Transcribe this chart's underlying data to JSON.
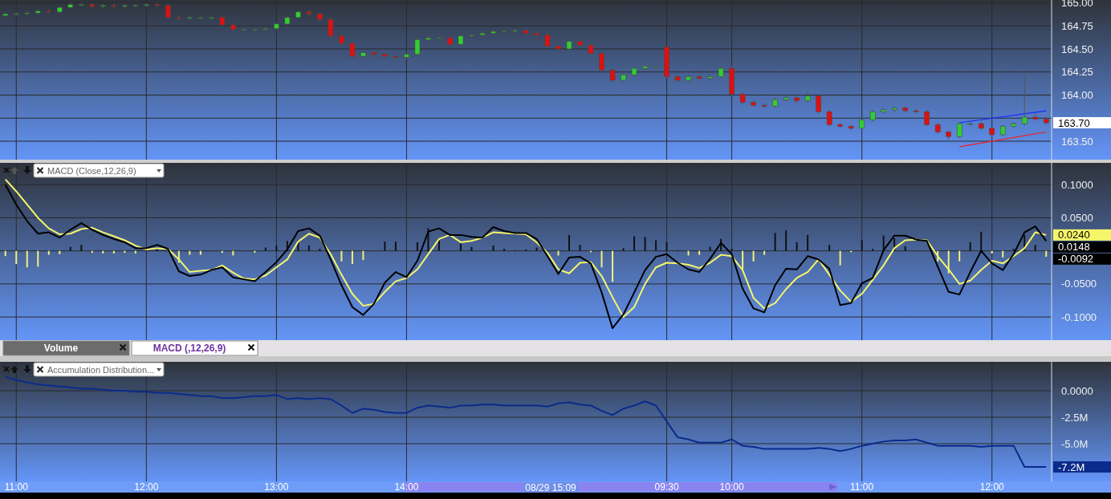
{
  "chart_data": [
    {
      "type": "candlestick",
      "ohlc": [
        [
          164.86,
          164.9,
          164.84,
          164.88
        ],
        [
          164.88,
          164.9,
          164.86,
          164.88
        ],
        [
          164.88,
          164.91,
          164.86,
          164.89
        ],
        [
          164.89,
          164.93,
          164.87,
          164.91
        ],
        [
          164.91,
          164.93,
          164.88,
          164.9
        ],
        [
          164.9,
          164.97,
          164.88,
          164.95
        ],
        [
          164.95,
          165.0,
          164.93,
          164.98
        ],
        [
          164.98,
          165.0,
          164.96,
          164.98
        ],
        [
          164.98,
          165.0,
          164.94,
          164.96
        ],
        [
          164.96,
          164.99,
          164.94,
          164.97
        ],
        [
          164.97,
          164.99,
          164.94,
          164.96
        ],
        [
          164.96,
          164.99,
          164.94,
          164.97
        ],
        [
          164.97,
          164.99,
          164.95,
          164.97
        ],
        [
          164.97,
          165.0,
          164.95,
          164.98
        ],
        [
          164.98,
          165.0,
          164.95,
          164.97
        ],
        [
          164.97,
          164.99,
          164.82,
          164.84
        ],
        [
          164.84,
          164.86,
          164.81,
          164.83
        ],
        [
          164.83,
          164.86,
          164.81,
          164.84
        ],
        [
          164.84,
          164.86,
          164.82,
          164.84
        ],
        [
          164.84,
          164.86,
          164.82,
          164.84
        ],
        [
          164.84,
          164.86,
          164.74,
          164.76
        ],
        [
          164.76,
          164.78,
          164.69,
          164.71
        ],
        [
          164.71,
          164.73,
          164.69,
          164.71
        ],
        [
          164.71,
          164.73,
          164.69,
          164.71
        ],
        [
          164.71,
          164.74,
          164.69,
          164.72
        ],
        [
          164.72,
          164.79,
          164.7,
          164.77
        ],
        [
          164.77,
          164.86,
          164.75,
          164.84
        ],
        [
          164.84,
          164.92,
          164.82,
          164.9
        ],
        [
          164.9,
          164.92,
          164.86,
          164.88
        ],
        [
          164.88,
          164.9,
          164.8,
          164.82
        ],
        [
          164.82,
          164.84,
          164.62,
          164.64
        ],
        [
          164.64,
          164.66,
          164.54,
          164.56
        ],
        [
          164.56,
          164.58,
          164.4,
          164.42
        ],
        [
          164.42,
          164.48,
          164.4,
          164.46
        ],
        [
          164.46,
          164.48,
          164.42,
          164.44
        ],
        [
          164.44,
          164.46,
          164.4,
          164.42
        ],
        [
          164.42,
          164.44,
          164.39,
          164.41
        ],
        [
          164.41,
          164.46,
          164.39,
          164.44
        ],
        [
          164.44,
          164.62,
          164.42,
          164.6
        ],
        [
          164.6,
          164.64,
          164.58,
          164.62
        ],
        [
          164.62,
          164.64,
          164.6,
          164.62
        ],
        [
          164.62,
          164.64,
          164.53,
          164.55
        ],
        [
          164.55,
          164.66,
          164.53,
          164.64
        ],
        [
          164.64,
          164.67,
          164.62,
          164.65
        ],
        [
          164.65,
          164.69,
          164.63,
          164.67
        ],
        [
          164.67,
          164.71,
          164.65,
          164.69
        ],
        [
          164.69,
          164.71,
          164.67,
          164.69
        ],
        [
          164.69,
          164.72,
          164.67,
          164.7
        ],
        [
          164.7,
          164.72,
          164.65,
          164.67
        ],
        [
          164.67,
          164.69,
          164.63,
          164.65
        ],
        [
          164.65,
          164.67,
          164.51,
          164.53
        ],
        [
          164.53,
          164.55,
          164.48,
          164.5
        ],
        [
          164.5,
          164.6,
          164.48,
          164.58
        ],
        [
          164.58,
          164.6,
          164.52,
          164.54
        ],
        [
          164.54,
          164.56,
          164.43,
          164.45
        ],
        [
          164.45,
          164.47,
          164.25,
          164.27
        ],
        [
          164.27,
          164.29,
          164.14,
          164.16
        ],
        [
          164.16,
          164.24,
          164.14,
          164.22
        ],
        [
          164.22,
          164.31,
          164.2,
          164.29
        ],
        [
          164.29,
          164.33,
          164.27,
          164.31
        ],
        [
          164.31,
          164.33,
          164.29,
          164.31
        ],
        [
          164.52,
          164.53,
          164.18,
          164.2
        ],
        [
          164.2,
          164.22,
          164.14,
          164.16
        ],
        [
          164.16,
          164.22,
          164.14,
          164.2
        ],
        [
          164.2,
          164.22,
          164.16,
          164.18
        ],
        [
          164.18,
          164.22,
          164.16,
          164.2
        ],
        [
          164.2,
          164.31,
          164.18,
          164.29
        ],
        [
          164.29,
          164.31,
          163.99,
          164.01
        ],
        [
          164.01,
          164.03,
          163.9,
          163.92
        ],
        [
          163.92,
          163.94,
          163.87,
          163.89
        ],
        [
          163.89,
          163.91,
          163.86,
          163.88
        ],
        [
          163.88,
          163.97,
          163.86,
          163.95
        ],
        [
          163.95,
          163.99,
          163.93,
          163.97
        ],
        [
          163.97,
          163.99,
          163.92,
          163.94
        ],
        [
          163.94,
          164.04,
          163.92,
          163.99
        ],
        [
          163.99,
          164.01,
          163.8,
          163.82
        ],
        [
          163.82,
          163.84,
          163.66,
          163.68
        ],
        [
          163.68,
          163.7,
          163.64,
          163.66
        ],
        [
          163.66,
          163.68,
          163.62,
          163.64
        ],
        [
          163.64,
          163.75,
          163.62,
          163.73
        ],
        [
          163.73,
          163.84,
          163.71,
          163.82
        ],
        [
          163.82,
          163.86,
          163.8,
          163.84
        ],
        [
          163.84,
          163.88,
          163.82,
          163.86
        ],
        [
          163.86,
          163.88,
          163.81,
          163.83
        ],
        [
          163.83,
          163.85,
          163.8,
          163.82
        ],
        [
          163.82,
          163.84,
          163.66,
          163.68
        ],
        [
          163.68,
          163.7,
          163.58,
          163.6
        ],
        [
          163.6,
          163.62,
          163.51,
          163.55
        ],
        [
          163.55,
          163.71,
          163.53,
          163.69
        ],
        [
          163.69,
          163.71,
          163.67,
          163.69
        ],
        [
          163.69,
          163.71,
          163.62,
          163.64
        ],
        [
          163.64,
          163.66,
          163.55,
          163.57
        ],
        [
          163.57,
          163.68,
          163.55,
          163.66
        ],
        [
          163.66,
          163.71,
          163.64,
          163.69
        ],
        [
          163.69,
          164.21,
          163.67,
          163.76
        ],
        [
          163.76,
          163.8,
          163.72,
          163.74
        ],
        [
          163.74,
          163.76,
          163.68,
          163.7
        ]
      ],
      "series": [
        {
          "type": "line",
          "color": "#1a2cff",
          "values": [
            null,
            null,
            null,
            null,
            null,
            null,
            null,
            null,
            null,
            null,
            null,
            null,
            null,
            null,
            null,
            null,
            null,
            null,
            null,
            null,
            null,
            null,
            null,
            null,
            null,
            null,
            null,
            null,
            null,
            null,
            null,
            null,
            null,
            null,
            null,
            null,
            null,
            null,
            null,
            null,
            null,
            null,
            null,
            null,
            null,
            null,
            null,
            null,
            null,
            null,
            null,
            null,
            null,
            null,
            null,
            null,
            null,
            null,
            null,
            null,
            null,
            null,
            null,
            null,
            null,
            null,
            null,
            null,
            null,
            null,
            null,
            null,
            null,
            null,
            null,
            null,
            null,
            null,
            null,
            null,
            null,
            null,
            null,
            null,
            null,
            null,
            null,
            null,
            163.7,
            null,
            null,
            null,
            null,
            null,
            null,
            null,
            163.83
          ]
        },
        {
          "type": "line",
          "color": "#ee2222",
          "values": [
            null,
            null,
            null,
            null,
            null,
            null,
            null,
            null,
            null,
            null,
            null,
            null,
            null,
            null,
            null,
            null,
            null,
            null,
            null,
            null,
            null,
            null,
            null,
            null,
            null,
            null,
            null,
            null,
            null,
            null,
            null,
            null,
            null,
            null,
            null,
            null,
            null,
            null,
            null,
            null,
            null,
            null,
            null,
            null,
            null,
            null,
            null,
            null,
            null,
            null,
            null,
            null,
            null,
            null,
            null,
            null,
            null,
            null,
            null,
            null,
            null,
            null,
            null,
            null,
            null,
            null,
            null,
            null,
            null,
            null,
            null,
            null,
            null,
            null,
            null,
            null,
            null,
            null,
            null,
            null,
            null,
            null,
            null,
            null,
            null,
            null,
            null,
            null,
            163.44,
            null,
            null,
            null,
            null,
            null,
            null,
            null,
            163.6
          ]
        }
      ],
      "ylim": [
        163.3,
        165.03
      ],
      "yticks": [
        {
          "value": 165,
          "label": "165.00"
        },
        {
          "value": 164.75,
          "label": "164.75"
        },
        {
          "value": 164.5,
          "label": "164.50"
        },
        {
          "value": 164.25,
          "label": "164.25"
        },
        {
          "value": 164,
          "label": "164.00"
        },
        {
          "value": 163.75,
          "label": null
        },
        {
          "value": 163.5,
          "label": "163.50"
        }
      ],
      "annotations": [
        "163.70"
      ],
      "grid": true,
      "tick_labels": "y"
    },
    {
      "type": "line",
      "title": "MACD (Close,12,26,9)",
      "series": [
        {
          "type": "line",
          "color": "#f5f56a",
          "values": [
            0.108,
            0.09,
            0.07,
            0.05,
            0.034,
            0.025,
            0.026,
            0.033,
            0.035,
            0.028,
            0.022,
            0.016,
            0.008,
            0.002,
            0.004,
            0.003,
            -0.013,
            -0.032,
            -0.03,
            -0.029,
            -0.022,
            -0.033,
            -0.042,
            -0.043,
            -0.037,
            -0.025,
            -0.013,
            0.014,
            0.026,
            0.02,
            -0.005,
            -0.036,
            -0.065,
            -0.083,
            -0.08,
            -0.062,
            -0.046,
            -0.041,
            -0.028,
            -0.005,
            0.018,
            0.024,
            0.013,
            0.015,
            0.02,
            0.028,
            0.027,
            0.026,
            0.025,
            0.013,
            -0.003,
            -0.028,
            -0.034,
            -0.018,
            -0.017,
            -0.038,
            -0.07,
            -0.1,
            -0.085,
            -0.05,
            -0.025,
            -0.018,
            -0.019,
            -0.021,
            -0.026,
            -0.018,
            -0.006,
            -0.008,
            -0.029,
            -0.071,
            -0.087,
            -0.079,
            -0.058,
            -0.041,
            -0.032,
            -0.013,
            -0.036,
            -0.06,
            -0.077,
            -0.065,
            -0.044,
            -0.022,
            0.004,
            0.016,
            0.017,
            0.016,
            -0.008,
            -0.028,
            -0.05,
            -0.045,
            -0.029,
            -0.015,
            -0.019,
            -0.008,
            0.004,
            0.028,
            0.024
          ]
        },
        {
          "type": "line",
          "color": "#000000",
          "values": [
            0.1,
            0.07,
            0.045,
            0.026,
            0.028,
            0.02,
            0.032,
            0.042,
            0.032,
            0.024,
            0.018,
            0.013,
            0.004,
            0.004,
            0.009,
            0.003,
            -0.031,
            -0.038,
            -0.036,
            -0.029,
            -0.025,
            -0.04,
            -0.043,
            -0.046,
            -0.032,
            -0.017,
            0.002,
            0.03,
            0.034,
            0.023,
            -0.013,
            -0.052,
            -0.085,
            -0.097,
            -0.08,
            -0.048,
            -0.032,
            -0.04,
            -0.015,
            0.029,
            0.034,
            0.024,
            0.024,
            0.021,
            0.02,
            0.036,
            0.03,
            0.027,
            0.027,
            0.018,
            -0.008,
            -0.035,
            -0.01,
            -0.009,
            -0.019,
            -0.063,
            -0.117,
            -0.096,
            -0.063,
            -0.029,
            -0.009,
            -0.005,
            -0.018,
            -0.028,
            -0.032,
            -0.012,
            0.012,
            -0.005,
            -0.057,
            -0.087,
            -0.093,
            -0.052,
            -0.027,
            -0.028,
            -0.008,
            -0.013,
            -0.027,
            -0.082,
            -0.079,
            -0.049,
            -0.041,
            0.001,
            0.023,
            0.023,
            0.017,
            0.015,
            -0.024,
            -0.062,
            -0.066,
            -0.032,
            0.0,
            -0.019,
            -0.029,
            -0.005,
            0.028,
            0.037,
            0.015
          ]
        },
        {
          "type": "bar",
          "color": "#111111",
          "values": [
            null,
            null,
            null,
            null,
            null,
            null,
            0.006,
            0.009,
            null,
            null,
            null,
            null,
            null,
            0.002,
            0.005,
            null,
            null,
            null,
            null,
            null,
            null,
            null,
            null,
            null,
            0.005,
            0.008,
            0.015,
            0.016,
            0.008,
            0.003,
            null,
            null,
            null,
            null,
            null,
            0.014,
            0.014,
            0.001,
            0.013,
            0.034,
            0.016,
            null,
            0.011,
            0.006,
            null,
            0.008,
            0.003,
            0.001,
            0.002,
            0.005,
            null,
            null,
            0.024,
            0.009,
            null,
            null,
            null,
            0.004,
            0.022,
            0.021,
            0.016,
            0.013,
            0.001,
            null,
            null,
            0.006,
            0.018,
            0.003,
            null,
            null,
            null,
            0.027,
            0.031,
            0.013,
            0.024,
            null,
            0.009,
            null,
            null,
            0.016,
            0.003,
            0.023,
            0.019,
            0.007,
            null,
            null,
            null,
            null,
            null,
            0.013,
            0.029,
            null,
            null,
            0.003,
            0.024,
            0.009,
            null
          ]
        },
        {
          "type": "bar",
          "color": "#f0f080",
          "values": [
            -0.008,
            -0.02,
            -0.025,
            -0.024,
            -0.006,
            -0.005,
            null,
            null,
            -0.003,
            -0.004,
            -0.004,
            -0.003,
            -0.004,
            null,
            null,
            null,
            -0.018,
            -0.006,
            -0.006,
            null,
            -0.003,
            -0.007,
            null,
            -0.003,
            null,
            null,
            null,
            null,
            null,
            null,
            null,
            -0.016,
            -0.02,
            -0.014,
            null,
            null,
            null,
            null,
            null,
            null,
            null,
            null,
            null,
            null,
            null,
            null,
            null,
            null,
            null,
            null,
            null,
            -0.007,
            null,
            null,
            -0.002,
            -0.025,
            -0.047,
            null,
            null,
            null,
            null,
            null,
            null,
            -0.007,
            -0.006,
            null,
            null,
            null,
            -0.028,
            -0.016,
            -0.006,
            null,
            null,
            null,
            null,
            null,
            null,
            -0.022,
            -0.002,
            null,
            null,
            null,
            null,
            null,
            null,
            null,
            -0.016,
            -0.034,
            -0.016,
            null,
            null,
            -0.004,
            -0.01,
            null,
            null,
            null,
            -0.009
          ]
        }
      ],
      "ylim": [
        -0.135,
        0.133
      ],
      "yticks": [
        {
          "value": 0.1,
          "label": "0.1000"
        },
        {
          "value": 0.05,
          "label": "0.0500"
        },
        {
          "value": 0,
          "label": null
        },
        {
          "value": -0.05,
          "label": "-0.0500"
        },
        {
          "value": -0.1,
          "label": "-0.1000"
        }
      ],
      "annotations": [
        "0.0240",
        "0.0148",
        "-0.0092",
        "Volume",
        "MACD (,12,26,9)"
      ],
      "grid": true,
      "tick_labels": "y"
    },
    {
      "type": "line",
      "title": "Accumulation Distribution...",
      "categories": [
        null,
        "11:00",
        null,
        null,
        null,
        null,
        null,
        null,
        null,
        null,
        null,
        null,
        null,
        "12:00",
        null,
        null,
        null,
        null,
        null,
        null,
        null,
        null,
        null,
        null,
        null,
        "13:00",
        null,
        null,
        null,
        null,
        null,
        null,
        null,
        null,
        null,
        null,
        null,
        "14:00",
        null,
        null,
        null,
        null,
        null,
        null,
        null,
        null,
        null,
        null,
        null,
        null,
        null,
        null,
        null,
        null,
        null,
        null,
        null,
        null,
        null,
        null,
        null,
        "09:30",
        null,
        null,
        null,
        null,
        null,
        "10:00",
        null,
        null,
        null,
        null,
        null,
        null,
        null,
        null,
        null,
        null,
        null,
        "11:00",
        null,
        null,
        null,
        null,
        null,
        null,
        null,
        null,
        null,
        null,
        null,
        "12:00",
        null,
        null,
        null,
        null,
        null
      ],
      "series": [
        {
          "color": "#0b2b8c",
          "values": [
            1.3,
            1.0,
            0.8,
            0.6,
            0.5,
            0.4,
            0.3,
            0.2,
            0.2,
            0.1,
            0.0,
            0.0,
            -0.1,
            -0.1,
            -0.2,
            -0.2,
            -0.3,
            -0.4,
            -0.5,
            -0.5,
            -0.7,
            -0.7,
            -0.6,
            -0.5,
            -0.5,
            -0.4,
            -0.8,
            -0.7,
            -0.8,
            -0.7,
            -0.8,
            -1.4,
            -2.1,
            -1.7,
            -1.8,
            -2.0,
            -2.1,
            -2.1,
            -1.6,
            -1.4,
            -1.5,
            -1.6,
            -1.4,
            -1.4,
            -1.3,
            -1.3,
            -1.4,
            -1.4,
            -1.4,
            -1.4,
            -1.5,
            -1.2,
            -1.1,
            -1.3,
            -1.4,
            -1.9,
            -2.3,
            -1.7,
            -1.4,
            -1.0,
            -1.4,
            -2.9,
            -4.4,
            -4.6,
            -4.9,
            -4.9,
            -4.9,
            -4.6,
            -5.2,
            -5.3,
            -5.5,
            -5.5,
            -5.5,
            -5.5,
            -5.5,
            -5.4,
            -5.5,
            -5.7,
            -5.5,
            -5.2,
            -5.0,
            -4.8,
            -4.7,
            -4.7,
            -4.6,
            -4.9,
            -5.2,
            -5.2,
            -5.2,
            -5.2,
            -5.3,
            -5.2,
            -5.2,
            -5.2,
            -7.2,
            -7.2,
            -7.2
          ]
        }
      ],
      "ylim": [
        -8.56,
        2.73
      ],
      "yticks": [
        {
          "value": 0,
          "label": "0.0000"
        },
        {
          "value": -2.5,
          "label": "-2.5M"
        },
        {
          "value": -5,
          "label": "-5.0M"
        }
      ],
      "annotations": [
        "-7.2M",
        "08/29 15:09"
      ],
      "grid": true
    }
  ]
}
